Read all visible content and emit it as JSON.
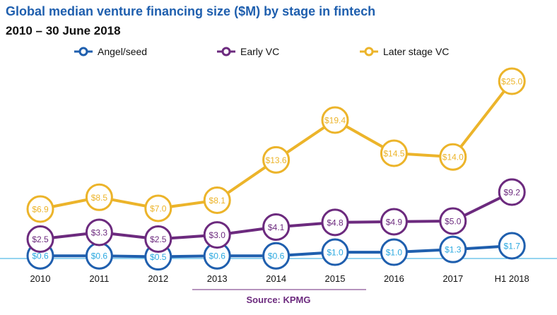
{
  "chart_data": {
    "type": "line",
    "title": "Global median venture financing size ($M) by stage in fintech",
    "subtitle": "2010 – 30 June 2018",
    "categories": [
      "2010",
      "2011",
      "2012",
      "2013",
      "2014",
      "2015",
      "2016",
      "2017",
      "H1 2018"
    ],
    "series": [
      {
        "name": "Angel/seed",
        "color": "#1f5fae",
        "label_color": "#2aa8e0",
        "values": [
          0.6,
          0.6,
          0.5,
          0.6,
          0.6,
          1.0,
          1.0,
          1.3,
          1.7
        ],
        "labels": [
          "$0.6",
          "$0.6",
          "$0.5",
          "$0.6",
          "$0.6",
          "$1.0",
          "$1.0",
          "$1.3",
          "$1.7"
        ]
      },
      {
        "name": "Early VC",
        "color": "#6c2a7e",
        "label_color": "#6c2a7e",
        "values": [
          2.5,
          3.3,
          2.5,
          3.0,
          4.1,
          4.8,
          4.9,
          5.0,
          9.2
        ],
        "labels": [
          "$2.5",
          "$3.3",
          "$2.5",
          "$3.0",
          "$4.1",
          "$4.8",
          "$4.9",
          "$5.0",
          "$9.2"
        ]
      },
      {
        "name": "Later stage VC",
        "color": "#ecb42a",
        "label_color": "#ecb42a",
        "values": [
          6.9,
          8.5,
          7.0,
          8.1,
          13.6,
          19.4,
          14.5,
          14.0,
          25.0
        ],
        "labels": [
          "$6.9",
          "$8.5",
          "$7.0",
          "$8.1",
          "$13.6",
          "$19.4",
          "$14.5",
          "$14.0",
          "$25.0"
        ]
      }
    ],
    "legend_position": "top",
    "grid": false,
    "source": "Source: KPMG"
  }
}
